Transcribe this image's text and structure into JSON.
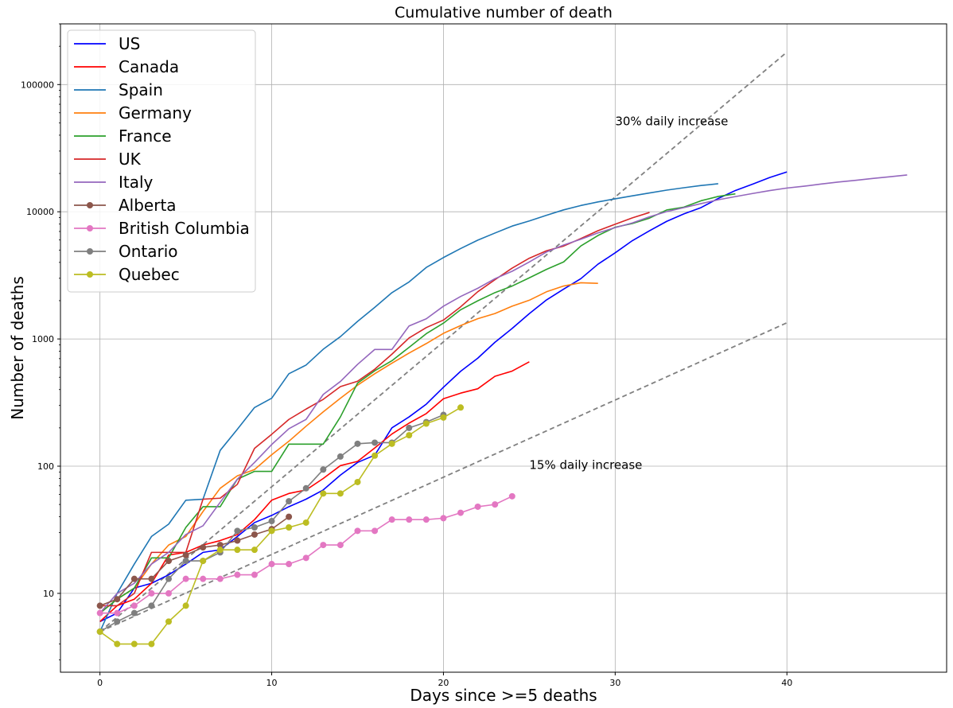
{
  "chart_data": {
    "type": "line",
    "title": "Cumulative number of death",
    "xlabel": "Days since >=5 deaths",
    "ylabel": "Number of deaths",
    "yscale": "log",
    "xlim": [
      -2.3,
      49.3
    ],
    "ylim": [
      2.4,
      300000
    ],
    "xticks": [
      0,
      10,
      20,
      30,
      40
    ],
    "yticks": [
      10,
      100,
      1000,
      10000,
      100000
    ],
    "ytick_labels": [
      "10",
      "100",
      "1000",
      "10000",
      "100000"
    ],
    "grid": true,
    "legend_position": "top-left",
    "reference_lines": [
      {
        "label": "30% daily increase",
        "x": [
          0,
          40
        ],
        "y": [
          5,
          180000
        ],
        "label_at": [
          30,
          48000
        ],
        "color": "#808080"
      },
      {
        "label": "15% daily increase",
        "x": [
          0,
          40
        ],
        "y": [
          5,
          1340
        ],
        "label_at": [
          25,
          95
        ],
        "color": "#808080"
      }
    ],
    "series": [
      {
        "name": "US",
        "color": "#0000ff",
        "marker": false,
        "x": [
          0,
          1,
          2,
          3,
          4,
          5,
          6,
          7,
          8,
          9,
          10,
          11,
          12,
          13,
          14,
          15,
          16,
          17,
          18,
          19,
          20,
          21,
          22,
          23,
          24,
          25,
          26,
          27,
          28,
          29,
          30,
          31,
          32,
          33,
          34,
          35,
          36,
          37,
          38,
          39,
          40
        ],
        "y": [
          6,
          7,
          11,
          12,
          14,
          17,
          21,
          22,
          28,
          36,
          41,
          48,
          55,
          65,
          85,
          107,
          122,
          200,
          244,
          307,
          417,
          557,
          706,
          942,
          1209,
          1581,
          2026,
          2467,
          2978,
          3873,
          4757,
          5926,
          7087,
          8407,
          9619,
          10783,
          12722,
          14695,
          16478,
          18586,
          20577
        ]
      },
      {
        "name": "Canada",
        "color": "#ff0000",
        "marker": false,
        "x": [
          0,
          1,
          2,
          3,
          4,
          5,
          6,
          7,
          8,
          9,
          10,
          11,
          12,
          13,
          14,
          15,
          16,
          17,
          18,
          19,
          20,
          21,
          22,
          23,
          24,
          25
        ],
        "y": [
          6,
          8,
          9,
          12,
          20,
          21,
          24,
          26,
          29,
          38,
          54,
          61,
          65,
          80,
          101,
          109,
          139,
          179,
          218,
          259,
          339,
          375,
          406,
          509,
          559,
          661
        ]
      },
      {
        "name": "Spain",
        "color": "#1f77b4",
        "marker": false,
        "x": [
          0,
          1,
          2,
          3,
          4,
          5,
          6,
          7,
          8,
          9,
          10,
          11,
          12,
          13,
          14,
          15,
          16,
          17,
          18,
          19,
          20,
          21,
          22,
          23,
          24,
          25,
          26,
          27,
          28,
          29,
          30,
          31,
          32,
          33,
          34,
          35,
          36
        ],
        "y": [
          5,
          10,
          17,
          28,
          35,
          54,
          55,
          133,
          195,
          289,
          342,
          533,
          623,
          830,
          1043,
          1375,
          1772,
          2311,
          2808,
          3647,
          4365,
          5138,
          5982,
          6803,
          7716,
          8464,
          9387,
          10348,
          11198,
          11947,
          12641,
          13341,
          14045,
          14792,
          15447,
          16081,
          16606
        ]
      },
      {
        "name": "Germany",
        "color": "#ff7f0e",
        "marker": false,
        "x": [
          0,
          1,
          2,
          3,
          4,
          5,
          6,
          7,
          8,
          9,
          10,
          11,
          12,
          13,
          14,
          15,
          16,
          17,
          18,
          19,
          20,
          21,
          22,
          23,
          24,
          25,
          26,
          27,
          28,
          29
        ],
        "y": [
          7,
          9,
          11,
          17,
          24,
          28,
          44,
          67,
          84,
          94,
          123,
          157,
          206,
          267,
          342,
          433,
          533,
          645,
          775,
          920,
          1107,
          1275,
          1444,
          1584,
          1810,
          2016,
          2349,
          2607,
          2767,
          2736
        ]
      },
      {
        "name": "France",
        "color": "#2ca02c",
        "marker": false,
        "x": [
          0,
          1,
          2,
          3,
          4,
          5,
          6,
          7,
          8,
          9,
          10,
          11,
          12,
          13,
          14,
          15,
          16,
          17,
          18,
          19,
          20,
          21,
          22,
          23,
          24,
          25,
          26,
          27,
          28,
          29,
          30,
          31,
          32,
          33,
          34,
          35,
          36,
          37
        ],
        "y": [
          7,
          9,
          11,
          19,
          19,
          33,
          48,
          48,
          79,
          91,
          91,
          149,
          149,
          149,
          244,
          450,
          562,
          674,
          860,
          1100,
          1331,
          1696,
          1995,
          2314,
          2606,
          3024,
          3523,
          4032,
          5387,
          6507,
          7560,
          8078,
          8911,
          10328,
          10869,
          12210,
          13197,
          13832
        ]
      },
      {
        "name": "UK",
        "color": "#d62728",
        "marker": false,
        "x": [
          0,
          1,
          2,
          3,
          4,
          5,
          6,
          7,
          8,
          9,
          10,
          11,
          12,
          13,
          14,
          15,
          16,
          17,
          18,
          19,
          20,
          21,
          22,
          23,
          24,
          25,
          26,
          27,
          28,
          29,
          30,
          31,
          32
        ],
        "y": [
          8,
          8,
          10,
          21,
          21,
          21,
          55,
          56,
          72,
          138,
          178,
          233,
          281,
          335,
          422,
          465,
          578,
          759,
          1019,
          1228,
          1408,
          1789,
          2352,
          2921,
          3605,
          4313,
          4934,
          5373,
          6159,
          7097,
          7978,
          8958,
          9875
        ]
      },
      {
        "name": "Italy",
        "color": "#9467bd",
        "marker": false,
        "x": [
          0,
          1,
          2,
          3,
          4,
          5,
          6,
          7,
          8,
          9,
          10,
          11,
          12,
          13,
          14,
          15,
          16,
          17,
          18,
          19,
          20,
          21,
          22,
          23,
          24,
          25,
          26,
          27,
          28,
          29,
          30,
          31,
          32,
          33,
          34,
          35,
          36,
          37,
          38,
          39,
          40,
          41,
          42,
          43,
          44,
          45,
          46,
          47
        ],
        "y": [
          7,
          10,
          12,
          17,
          21,
          29,
          34,
          52,
          79,
          107,
          148,
          197,
          233,
          366,
          463,
          631,
          827,
          827,
          1266,
          1441,
          1809,
          2158,
          2503,
          2978,
          3405,
          4032,
          4825,
          5476,
          6077,
          6820,
          7503,
          8165,
          9134,
          10023,
          10779,
          11591,
          12428,
          13155,
          13915,
          14681,
          15362,
          15887,
          16523,
          17127,
          17669,
          18279,
          18849,
          19468
        ]
      },
      {
        "name": "Alberta",
        "color": "#8c564b",
        "marker": true,
        "x": [
          0,
          1,
          2,
          3,
          4,
          5,
          6,
          7,
          8,
          9,
          10,
          11
        ],
        "y": [
          8,
          9,
          13,
          13,
          18,
          20,
          23,
          24,
          26,
          29,
          32,
          40
        ]
      },
      {
        "name": "British Columbia",
        "color": "#e377c2",
        "marker": true,
        "x": [
          0,
          1,
          2,
          3,
          4,
          5,
          6,
          7,
          8,
          9,
          10,
          11,
          12,
          13,
          14,
          15,
          16,
          17,
          18,
          19,
          20,
          21,
          22,
          23,
          24
        ],
        "y": [
          7,
          7,
          8,
          10,
          10,
          13,
          13,
          13,
          14,
          14,
          17,
          17,
          19,
          24,
          24,
          31,
          31,
          38,
          38,
          38,
          39,
          43,
          48,
          50,
          58
        ]
      },
      {
        "name": "Ontario",
        "color": "#7f7f7f",
        "marker": true,
        "x": [
          0,
          1,
          2,
          3,
          4,
          5,
          6,
          7,
          8,
          9,
          10,
          11,
          12,
          13,
          14,
          15,
          16,
          17,
          18,
          19,
          20
        ],
        "y": [
          5,
          6,
          7,
          8,
          13,
          18,
          18,
          21,
          31,
          33,
          37,
          53,
          67,
          94,
          119,
          150,
          153,
          153,
          200,
          222,
          253
        ]
      },
      {
        "name": "Quebec",
        "color": "#bcbd22",
        "marker": true,
        "x": [
          0,
          1,
          2,
          3,
          4,
          5,
          6,
          7,
          8,
          9,
          10,
          11,
          12,
          13,
          14,
          15,
          16,
          17,
          18,
          19,
          20,
          21
        ],
        "y": [
          5,
          4,
          4,
          4,
          6,
          8,
          18,
          22,
          22,
          22,
          31,
          33,
          36,
          61,
          61,
          75,
          121,
          150,
          175,
          216,
          241,
          289
        ]
      }
    ]
  }
}
